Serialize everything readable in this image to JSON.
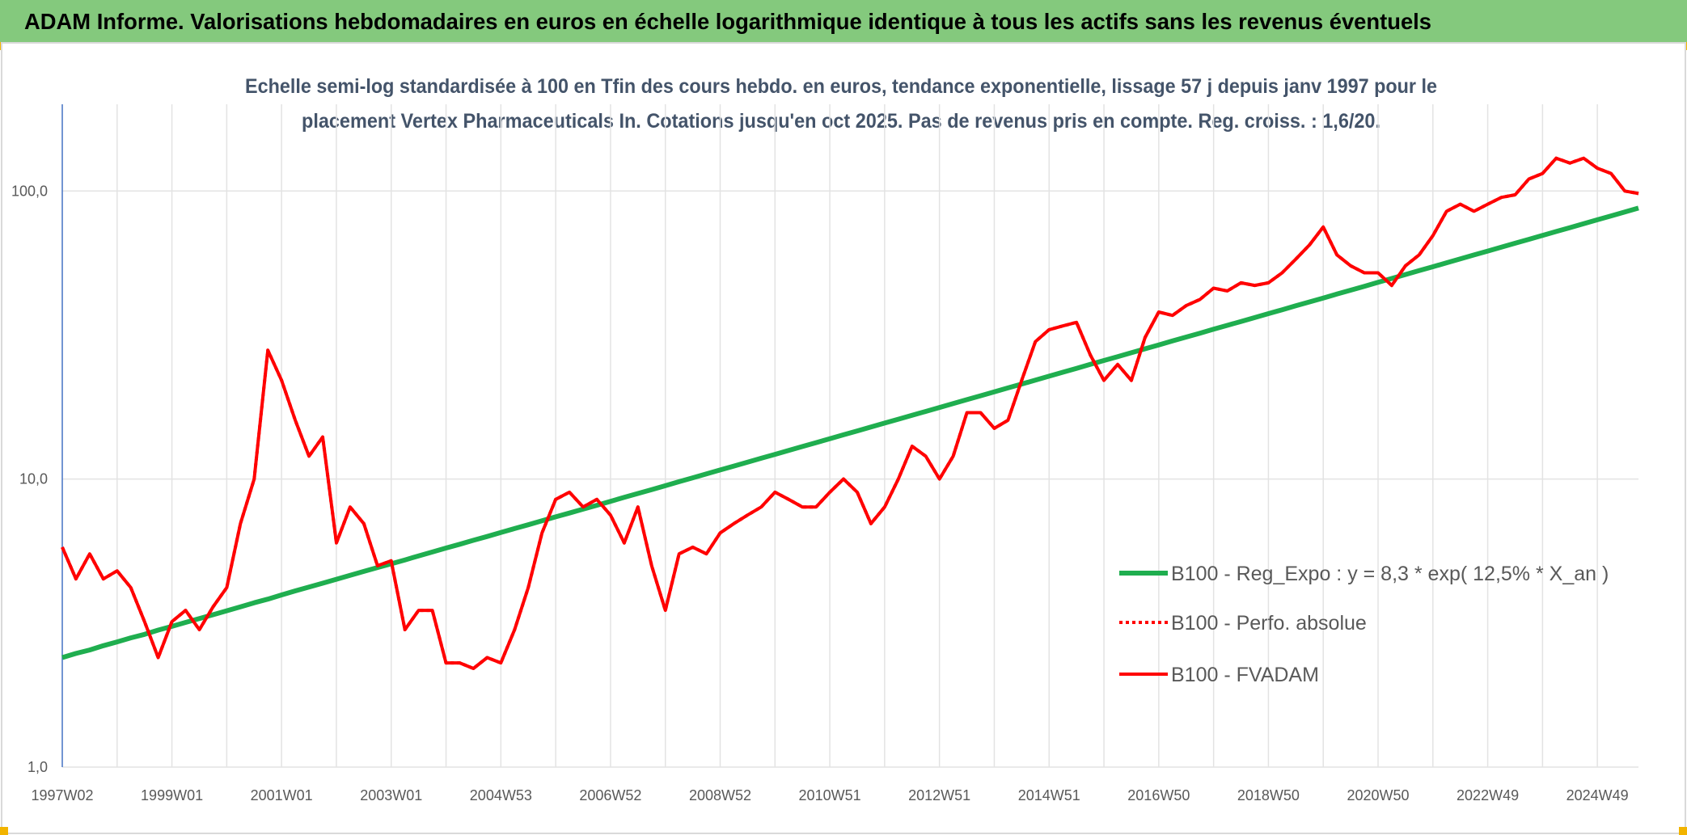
{
  "chart_data": {
    "type": "line",
    "title": "ADAM Informe. Valorisations hebdomadaires en euros en échelle logarithmique identique à tous les actifs sans les revenus éventuels",
    "subtitle": [
      "Echelle semi-log standardisée à 100 en Tfin des cours hebdo. en euros, tendance exponentielle, lissage 57 j depuis janv 1997 pour le",
      "placement Vertex Pharmaceuticals In. Cotations jusqu'en oct 2025. Pas de revenus pris en compte. Reg. croiss. : 1,6/20."
    ],
    "categories": [
      "1997W02",
      null,
      null,
      null,
      null,
      null,
      null,
      null,
      "1999W01",
      null,
      null,
      null,
      null,
      null,
      null,
      null,
      "2001W01",
      null,
      null,
      null,
      null,
      null,
      null,
      null,
      "2003W01",
      null,
      null,
      null,
      null,
      null,
      null,
      null,
      "2004W53",
      null,
      null,
      null,
      null,
      null,
      null,
      null,
      "2006W52",
      null,
      null,
      null,
      null,
      null,
      null,
      null,
      "2008W52",
      null,
      null,
      null,
      null,
      null,
      null,
      null,
      "2010W51",
      null,
      null,
      null,
      null,
      null,
      null,
      null,
      "2012W51",
      null,
      null,
      null,
      null,
      null,
      null,
      null,
      "2014W51",
      null,
      null,
      null,
      null,
      null,
      null,
      null,
      "2016W50",
      null,
      null,
      null,
      null,
      null,
      null,
      null,
      "2018W50",
      null,
      null,
      null,
      null,
      null,
      null,
      null,
      "2020W50",
      null,
      null,
      null,
      null,
      null,
      null,
      null,
      "2022W49",
      null,
      null,
      null,
      null,
      null,
      null,
      null,
      "2024W49",
      null,
      null,
      null
    ],
    "log_y": true,
    "ylim": [
      1,
      200
    ],
    "yticks": [
      {
        "value": 1,
        "label": "1,0"
      },
      {
        "value": 10,
        "label": "10,0"
      },
      {
        "value": 100,
        "label": "100,0"
      }
    ],
    "grid": true,
    "legend": "right",
    "series": [
      {
        "name": "B100 - Reg_Expo : y = 8,3 * exp( 12,5% *  X_an )",
        "color": "#1fae4f",
        "line_style": "solid",
        "values": [
          2.4,
          2.48,
          2.55,
          2.64,
          2.72,
          2.81,
          2.89,
          2.99,
          3.08,
          3.18,
          3.28,
          3.38,
          3.49,
          3.6,
          3.72,
          3.83,
          3.96,
          4.09,
          4.22,
          4.35,
          4.49,
          4.63,
          4.78,
          4.93,
          5.08,
          5.24,
          5.41,
          5.58,
          5.76,
          5.94,
          6.13,
          6.32,
          6.52,
          6.73,
          6.94,
          7.16,
          7.39,
          7.62,
          7.86,
          8.11,
          8.37,
          8.64,
          8.91,
          9.19,
          9.48,
          9.79,
          10.1,
          10.42,
          10.75,
          11.09,
          11.44,
          11.81,
          12.18,
          12.57,
          12.97,
          13.38,
          13.8,
          14.24,
          14.69,
          15.16,
          15.64,
          16.13,
          16.65,
          17.17,
          17.72,
          18.28,
          18.86,
          19.46,
          20.08,
          20.72,
          21.37,
          22.05,
          22.76,
          23.48,
          24.23,
          25,
          25.79,
          26.61,
          27.45,
          28.32,
          29.22,
          30.15,
          31.1,
          32.09,
          33.11,
          34.16,
          35.25,
          36.36,
          37.52,
          38.71,
          39.94,
          41.21,
          42.51,
          43.86,
          45.26,
          46.69,
          48.18,
          49.71,
          51.29,
          52.92,
          54.59,
          56.33,
          58.12,
          59.96,
          61.87,
          63.83,
          65.86,
          67.95,
          70.11,
          72.33,
          74.63,
          77,
          79.44,
          81.96,
          84.56,
          87.25
        ]
      },
      {
        "name": "B100 - Perfo. absolue",
        "color": "#ff0000",
        "line_style": "dotted",
        "values": [
          5.8,
          4.5,
          5.5,
          4.5,
          4.8,
          4.2,
          3.2,
          2.4,
          3.2,
          3.5,
          3.0,
          3.6,
          4.2,
          7,
          10,
          28,
          22,
          16,
          12,
          14,
          6,
          8,
          7,
          5,
          5.2,
          3.0,
          3.5,
          3.5,
          2.3,
          2.3,
          2.2,
          2.4,
          2.3,
          3.0,
          4.2,
          6.5,
          8.5,
          9,
          8,
          8.5,
          7.5,
          6,
          8,
          5,
          3.5,
          5.5,
          5.8,
          5.5,
          6.5,
          7,
          7.5,
          8,
          9,
          8.5,
          8,
          8,
          9,
          10,
          9,
          7,
          8,
          10,
          13,
          12,
          10,
          12,
          17,
          17,
          15,
          16,
          22,
          30,
          33,
          34,
          35,
          27,
          22,
          25,
          22,
          31,
          38,
          37,
          40,
          42,
          46,
          45,
          48,
          47,
          48,
          52,
          58,
          65,
          75,
          60,
          55,
          52,
          52,
          47,
          55,
          60,
          70,
          85,
          90,
          85,
          90,
          95,
          97,
          110,
          115,
          130,
          125,
          130,
          120,
          115,
          100,
          98
        ]
      },
      {
        "name": "B100 - FVADAM",
        "color": "#ff0000",
        "line_style": "solid",
        "values": [
          5.8,
          4.5,
          5.5,
          4.5,
          4.8,
          4.2,
          3.2,
          2.4,
          3.2,
          3.5,
          3.0,
          3.6,
          4.2,
          7,
          10,
          28,
          22,
          16,
          12,
          14,
          6,
          8,
          7,
          5,
          5.2,
          3.0,
          3.5,
          3.5,
          2.3,
          2.3,
          2.2,
          2.4,
          2.3,
          3.0,
          4.2,
          6.5,
          8.5,
          9,
          8,
          8.5,
          7.5,
          6,
          8,
          5,
          3.5,
          5.5,
          5.8,
          5.5,
          6.5,
          7,
          7.5,
          8,
          9,
          8.5,
          8,
          8,
          9,
          10,
          9,
          7,
          8,
          10,
          13,
          12,
          10,
          12,
          17,
          17,
          15,
          16,
          22,
          30,
          33,
          34,
          35,
          27,
          22,
          25,
          22,
          31,
          38,
          37,
          40,
          42,
          46,
          45,
          48,
          47,
          48,
          52,
          58,
          65,
          75,
          60,
          55,
          52,
          52,
          47,
          55,
          60,
          70,
          85,
          90,
          85,
          90,
          95,
          97,
          110,
          115,
          130,
          125,
          130,
          120,
          115,
          100,
          98
        ]
      }
    ]
  }
}
